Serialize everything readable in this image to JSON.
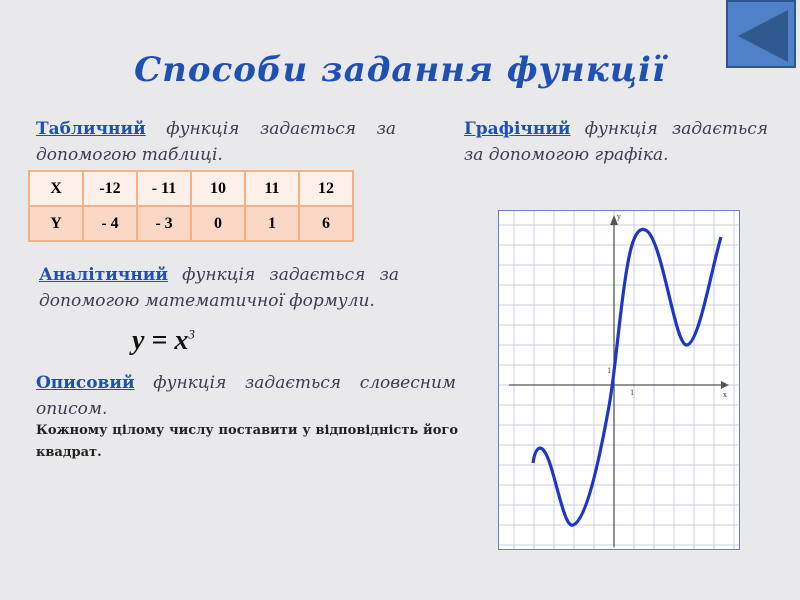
{
  "title": "Способи задання функції",
  "tabular": {
    "keyword": "Табличний",
    "text": " функція задається за допомогою таблиці."
  },
  "table": {
    "rows": [
      [
        "X",
        "-12",
        "- 11",
        "10",
        "11",
        "12"
      ],
      [
        "Y",
        "- 4",
        "- 3",
        "0",
        "1",
        "6"
      ]
    ]
  },
  "analytic": {
    "keyword": "Аналітичний",
    "text": " функція задається за допомогою математичної формули.",
    "formula": "y = x",
    "exponent": "3"
  },
  "descriptive": {
    "keyword": "Описовий",
    "text": " функція задається словесним описом.",
    "example": "Кожному цілому числу поставити у відповідність його квадрат."
  },
  "graphical": {
    "keyword": "Графічний",
    "text": " функція задається за допомогою графіка.",
    "axis_labels": {
      "x": "x",
      "y": "y",
      "unit_x": "1",
      "unit_y": "1"
    }
  },
  "nav": {
    "icon": "back-arrow-icon"
  },
  "colors": {
    "accent": "#1f50b4",
    "curve": "#1e36c8",
    "table_border": "#f4b183"
  }
}
